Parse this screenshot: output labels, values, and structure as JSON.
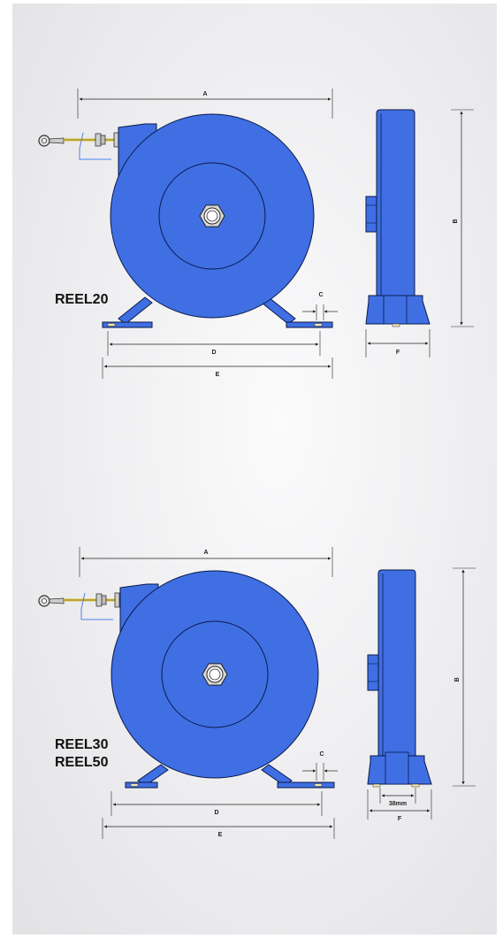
{
  "colors": {
    "reel_fill": "#3f6fe3",
    "reel_stroke": "#0b1a4a",
    "hose_yellow": "#d9c23a",
    "wire_blue": "#4f7ff0",
    "background_light": "#f7f7f8",
    "background_dark": "#e6e6e8"
  },
  "top_drawing": {
    "model_labels": [
      "REEL20"
    ],
    "dimensions": {
      "a": "A",
      "b": "B",
      "c": "C",
      "d": "D",
      "e": "E",
      "f": "F"
    }
  },
  "bottom_drawing": {
    "model_labels": [
      "REEL30",
      "REEL50"
    ],
    "dimensions": {
      "a": "A",
      "b": "B",
      "c": "C",
      "d": "D",
      "e": "E",
      "f": "F"
    },
    "base_width_label": "38mm"
  }
}
